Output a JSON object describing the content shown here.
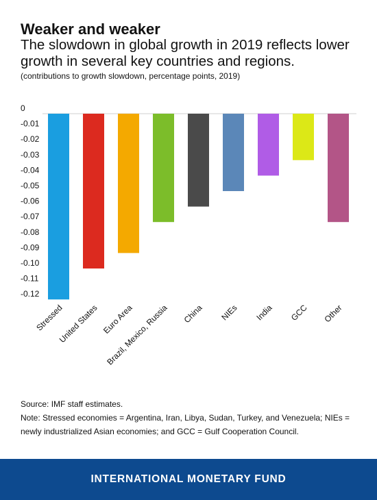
{
  "header": {
    "title": "Weaker and weaker",
    "subtitle": "The slowdown in global growth in 2019 reflects lower growth in several key countries and regions.",
    "units": "(contributions to growth slowdown, percentage points, 2019)"
  },
  "chart_data": {
    "type": "bar",
    "categories": [
      "Stressed",
      "United States",
      "Euro Area",
      "Brazil, Mexico, Russia",
      "China",
      "NIEs",
      "India",
      "GCC",
      "Other"
    ],
    "values": [
      -0.12,
      -0.1,
      -0.09,
      -0.07,
      -0.06,
      -0.05,
      -0.04,
      -0.03,
      -0.07
    ],
    "colors": [
      "#1a9ee0",
      "#dc2a1f",
      "#f4a900",
      "#7cbd2a",
      "#4a4a4a",
      "#5b87b8",
      "#b05ce6",
      "#dce817",
      "#b35587"
    ],
    "ylim": [
      -0.12,
      0
    ],
    "yticks": [
      0,
      -0.01,
      -0.02,
      -0.03,
      -0.04,
      -0.05,
      -0.06,
      -0.07,
      -0.08,
      -0.09,
      -0.1,
      -0.11,
      -0.12
    ],
    "ytick_labels": [
      "0",
      "-0.01",
      "-0.02",
      "-0.03",
      "-0.04",
      "-0.05",
      "-0.06",
      "-0.07",
      "-0.08",
      "-0.09",
      "-0.10",
      "-0.11",
      "-0.12"
    ],
    "grid": false,
    "legend": "none",
    "xlabel": "",
    "ylabel": ""
  },
  "footer": {
    "source": "Source: IMF staff estimates.",
    "note": "Note: Stressed economies  = Argentina, Iran, Libya, Sudan, Turkey, and Venezuela; NIEs = newly industrialized Asian economies; and GCC = Gulf Cooperation Council.",
    "brand": "INTERNATIONAL MONETARY FUND"
  }
}
